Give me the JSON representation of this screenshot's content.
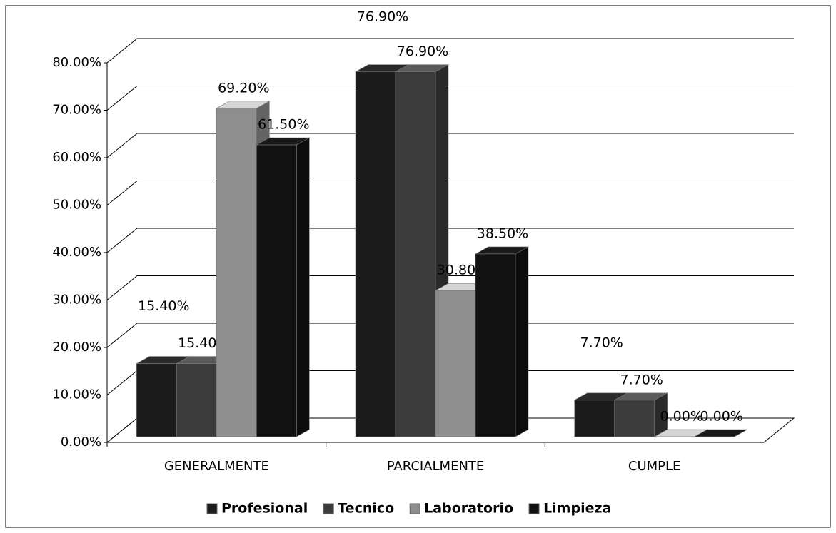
{
  "chart_data": {
    "type": "bar3d",
    "categories": [
      "GENERALMENTE",
      "PARCIALMENTE",
      "CUMPLE"
    ],
    "series": [
      {
        "name": "Profesional",
        "color": "#1c1c1c",
        "values": [
          15.4,
          76.9,
          7.7
        ],
        "value_labels": [
          "15.40%",
          "76.90%",
          "7.70%"
        ]
      },
      {
        "name": "Tecnico",
        "color": "#3c3c3c",
        "values": [
          15.4,
          76.9,
          7.7
        ],
        "value_labels": [
          "15.40%",
          "76.90%",
          "7.70%"
        ]
      },
      {
        "name": "Laboratorio",
        "color": "#8e8e8e",
        "values": [
          69.2,
          30.8,
          0
        ],
        "value_labels": [
          "69.20%",
          "30.80%",
          "0.00%"
        ]
      },
      {
        "name": "Limpieza",
        "color": "#111111",
        "values": [
          61.5,
          38.5,
          0
        ],
        "value_labels": [
          "61.50%",
          "38.50%",
          "0.00%"
        ]
      }
    ],
    "ylim": [
      0,
      80
    ],
    "yticks": [
      {
        "value": 0,
        "label": "0.00%"
      },
      {
        "value": 10,
        "label": "10.00%"
      },
      {
        "value": 20,
        "label": "20.00%"
      },
      {
        "value": 30,
        "label": "30.00%"
      },
      {
        "value": 40,
        "label": "40.00%"
      },
      {
        "value": 50,
        "label": "50.00%"
      },
      {
        "value": 60,
        "label": "60.00%"
      },
      {
        "value": 70,
        "label": "70.00%"
      },
      {
        "value": 80,
        "label": "80.00%"
      }
    ],
    "grid": true,
    "legend": "bottom"
  }
}
